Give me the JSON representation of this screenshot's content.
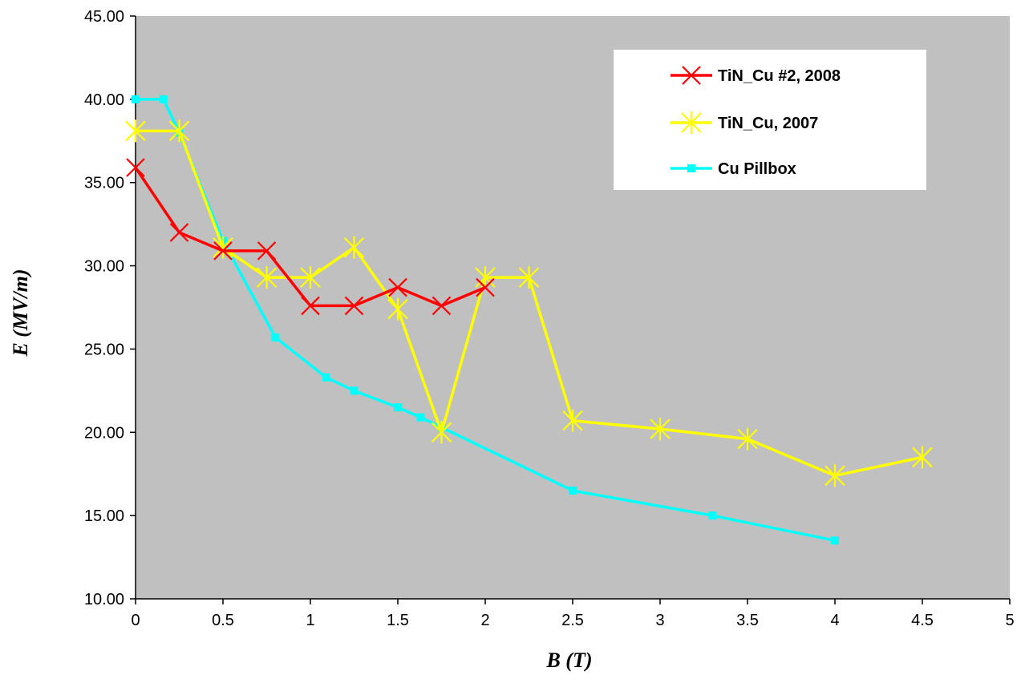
{
  "chart_data": {
    "type": "line",
    "xlabel": "B (T)",
    "ylabel": "E (MV/m)",
    "xlim": [
      0,
      5
    ],
    "ylim": [
      10,
      45
    ],
    "x_ticks": [
      "0",
      "0.5",
      "1",
      "1.5",
      "2",
      "2.5",
      "3",
      "3.5",
      "4",
      "4.5",
      "5"
    ],
    "y_ticks": [
      "10.00",
      "15.00",
      "20.00",
      "25.00",
      "30.00",
      "35.00",
      "40.00",
      "45.00"
    ],
    "grid": false,
    "plot_background": "#c0c0c0",
    "legend_position": "top-right",
    "series": [
      {
        "name": "TiN_Cu #2, 2008",
        "color": "#ff0000",
        "marker": "x",
        "x": [
          0,
          0.25,
          0.5,
          0.75,
          1.0,
          1.25,
          1.5,
          1.75,
          2.0
        ],
        "y": [
          35.9,
          32.0,
          30.9,
          30.9,
          27.6,
          27.6,
          28.7,
          27.6,
          28.7
        ]
      },
      {
        "name": "TiN_Cu, 2007",
        "color": "#ffff00",
        "marker": "star",
        "x": [
          0,
          0.25,
          0.5,
          0.75,
          1.0,
          1.25,
          1.5,
          1.75,
          2.0,
          2.25,
          2.5,
          3.0,
          3.5,
          4.0,
          4.5
        ],
        "y": [
          38.1,
          38.1,
          31.1,
          29.3,
          29.3,
          31.1,
          27.4,
          20.0,
          29.3,
          29.3,
          20.7,
          20.2,
          19.6,
          17.4,
          18.5
        ]
      },
      {
        "name": "Cu Pillbox",
        "color": "#00ffff",
        "marker": "square",
        "x": [
          0,
          0.16,
          0.25,
          0.5,
          0.8,
          1.09,
          1.25,
          1.5,
          1.63,
          1.75,
          2.5,
          3.3,
          4.0
        ],
        "y": [
          40.0,
          40.0,
          38.0,
          31.5,
          25.7,
          23.3,
          22.5,
          21.5,
          20.9,
          20.3,
          16.5,
          15.0,
          13.5
        ]
      }
    ]
  }
}
